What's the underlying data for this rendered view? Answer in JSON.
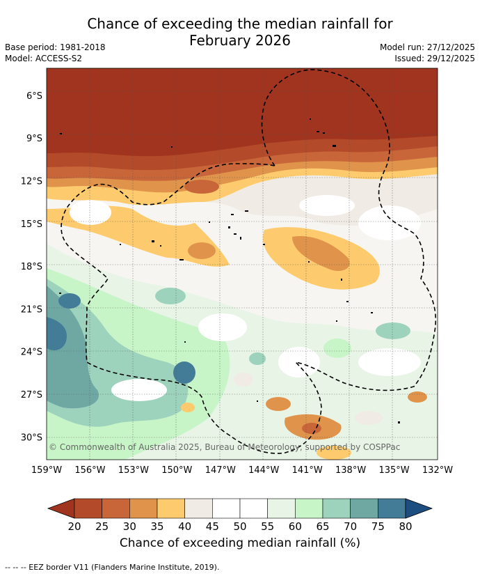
{
  "title_line1": "Chance of exceeding the median rainfall for",
  "title_line2": "February 2026",
  "base_period": "Base period: 1981-2018",
  "model": "Model: ACCESS-S2",
  "model_run": "Model run: 27/12/2025",
  "issued": "Issued: 29/12/2025",
  "copyright": "© Commonwealth of Australia 2025, Bureau of Meteorology, supported by COSPPac",
  "footer_note": "--  --  -- EEZ border V11 (Flanders Marine Institute, 2019).",
  "map": {
    "lon_ticks": [
      "159°W",
      "156°W",
      "153°W",
      "150°W",
      "147°W",
      "144°W",
      "141°W",
      "138°W",
      "135°W",
      "132°W"
    ],
    "lat_ticks": [
      "6°S",
      "9°S",
      "12°S",
      "15°S",
      "18°S",
      "21°S",
      "24°S",
      "27°S",
      "30°S"
    ],
    "lon_range": [
      -159,
      -132
    ],
    "lat_range": [
      -4.1,
      -31.6
    ]
  },
  "colorbar": {
    "title": "Chance of exceeding median rainfall (%)",
    "ticks": [
      "20",
      "25",
      "30",
      "35",
      "40",
      "45",
      "50",
      "55",
      "60",
      "65",
      "70",
      "75",
      "80"
    ],
    "colors": [
      "#a0341f",
      "#b34a2a",
      "#c8663a",
      "#e0934b",
      "#fdcb6e",
      "#f0ebe4",
      "#ffffff",
      "#ffffff",
      "#e8f5e6",
      "#c8f5c8",
      "#9dd3bd",
      "#6fa8a3",
      "#437c97",
      "#1e4e80"
    ]
  }
}
